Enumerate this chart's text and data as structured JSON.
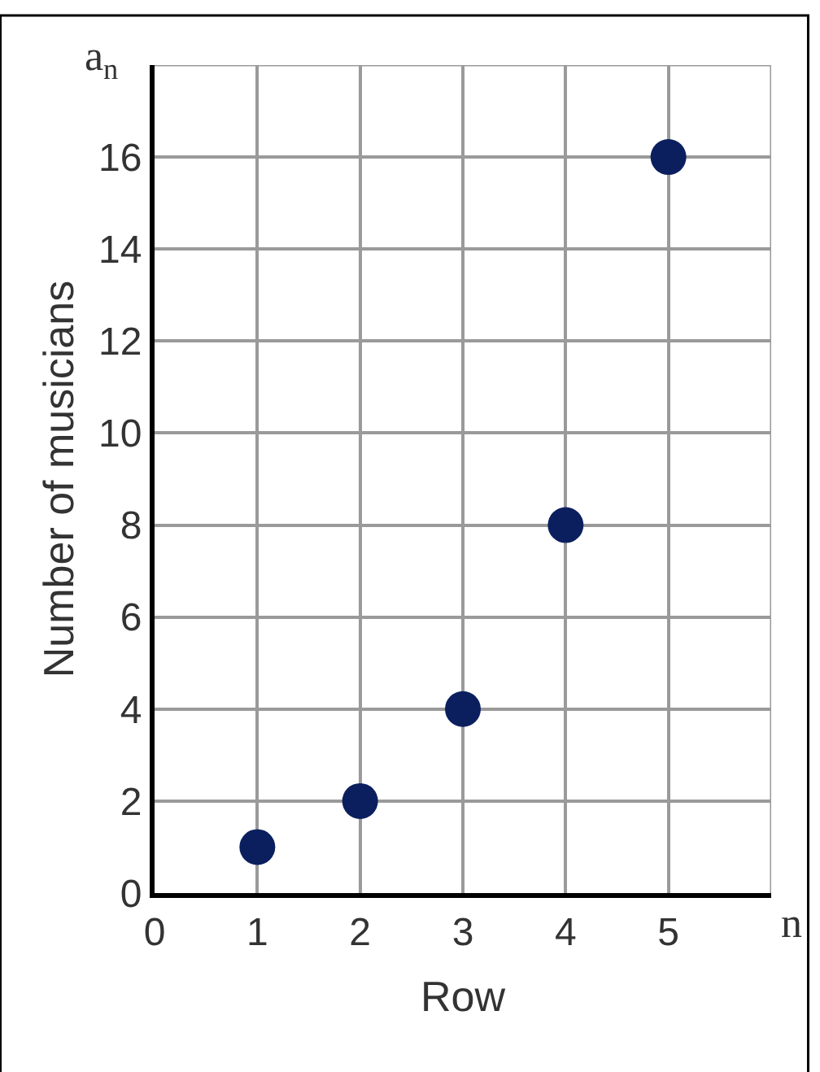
{
  "chart_data": {
    "type": "scatter",
    "xlabel": "Row",
    "ylabel": "Number of musicians",
    "annotations": [
      "a$_{n}$",
      "n"
    ],
    "x": [
      1,
      2,
      3,
      4,
      5
    ],
    "series": [
      {
        "color": "#0b1f5e",
        "values": [
          1,
          2,
          4,
          8,
          16
        ]
      }
    ],
    "xlim": [
      0,
      6
    ],
    "ylim": [
      0,
      18
    ],
    "xticks": [
      0,
      1,
      2,
      3,
      4,
      5
    ],
    "yticks": [
      0,
      2,
      4,
      6,
      8,
      10,
      12,
      14,
      16
    ],
    "grid": true,
    "marker": "circle",
    "legend": false
  }
}
